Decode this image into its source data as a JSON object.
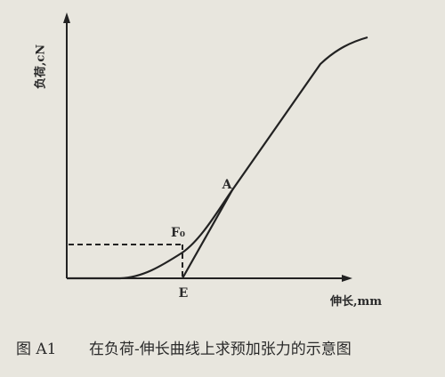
{
  "labels": {
    "y_axis": "负荷,cN",
    "x_axis": "伸长,mm",
    "point_a": "A",
    "point_f0": "F₀",
    "point_e": "E"
  },
  "caption": {
    "figure_number": "图 A1",
    "text": "在负荷-伸长曲线上求预加张力的示意图"
  }
}
